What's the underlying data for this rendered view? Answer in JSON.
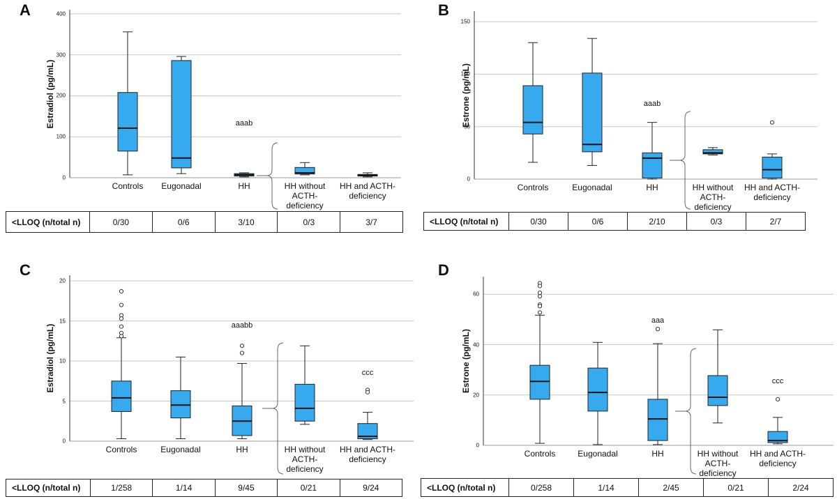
{
  "chart_data": [
    {
      "type": "box",
      "panel_label": "A",
      "y_label": "Estradiol (pg/mL)",
      "color": "#36a9ef",
      "grid": true,
      "ylim": [
        0,
        410
      ],
      "yticks": [
        0,
        100,
        200,
        300,
        400
      ],
      "categories": [
        "Controls",
        "Eugonadal",
        "HH",
        "HH without ACTH-deficiency",
        "HH and ACTH-deficiency"
      ],
      "boxes": [
        {
          "low": 7,
          "q1": 65,
          "median": 121,
          "q3": 208,
          "high": 356,
          "outliers": []
        },
        {
          "low": 10,
          "q1": 24,
          "median": 48,
          "q3": 286,
          "high": 296,
          "outliers": []
        },
        {
          "low": 2,
          "q1": 4,
          "median": 7,
          "q3": 10,
          "high": 12,
          "outliers": []
        },
        {
          "low": 7,
          "q1": 9,
          "median": 12,
          "q3": 25,
          "high": 37,
          "outliers": []
        },
        {
          "low": 2,
          "q1": 4,
          "median": 6,
          "q3": 8,
          "high": 12,
          "outliers": []
        }
      ],
      "annotations": [
        null,
        null,
        {
          "text": "aaab",
          "y": 133
        },
        null,
        null
      ],
      "table": {
        "header": "<LLOQ (n/total n)",
        "cells": [
          "0/30",
          "0/6",
          "3/10",
          "0/3",
          "3/7"
        ]
      }
    },
    {
      "type": "box",
      "panel_label": "B",
      "y_label": "Estrone (pg/mL)",
      "color": "#36a9ef",
      "grid": true,
      "ylim": [
        0,
        160
      ],
      "yticks": [
        0,
        50,
        100,
        150
      ],
      "categories": [
        "Controls",
        "Eugonadal",
        "HH",
        "HH without ACTH-deficiency",
        "HH and ACTH-deficiency"
      ],
      "boxes": [
        {
          "low": 16,
          "q1": 43,
          "median": 54,
          "q3": 89,
          "high": 130,
          "outliers": []
        },
        {
          "low": 13,
          "q1": 26,
          "median": 33,
          "q3": 101,
          "high": 134,
          "outliers": []
        },
        {
          "low": 0,
          "q1": 1,
          "median": 20,
          "q3": 25,
          "high": 54,
          "outliers": []
        },
        {
          "low": 23,
          "q1": 24,
          "median": 25,
          "q3": 28,
          "high": 30,
          "outliers": []
        },
        {
          "low": 0,
          "q1": 1,
          "median": 9,
          "q3": 21,
          "high": 24,
          "outliers": [
            54
          ]
        }
      ],
      "annotations": [
        null,
        null,
        {
          "text": "aaab",
          "y": 72
        },
        null,
        null
      ],
      "table": {
        "header": "<LLOQ (n/total n)",
        "cells": [
          "0/30",
          "0/6",
          "2/10",
          "0/3",
          "2/7"
        ]
      }
    },
    {
      "type": "box",
      "panel_label": "C",
      "y_label": "Estradiol (pg/mL)",
      "color": "#36a9ef",
      "grid": true,
      "ylim": [
        0,
        20.7
      ],
      "yticks": [
        0,
        5,
        10,
        15,
        20
      ],
      "categories": [
        "Controls",
        "Eugonadal",
        "HH",
        "HH without ACTH-deficiency",
        "HH and ACTH-deficiency"
      ],
      "boxes": [
        {
          "low": 0.3,
          "q1": 3.7,
          "median": 5.4,
          "q3": 7.5,
          "high": 12.9,
          "outliers": [
            18.7,
            17,
            15.7,
            15.3,
            14.3,
            13.5,
            13.1
          ]
        },
        {
          "low": 0.3,
          "q1": 2.9,
          "median": 4.5,
          "q3": 6.3,
          "high": 10.5,
          "outliers": []
        },
        {
          "low": 0.3,
          "q1": 0.7,
          "median": 2.5,
          "q3": 4.4,
          "high": 9.7,
          "outliers": [
            11.9,
            11
          ]
        },
        {
          "low": 2.1,
          "q1": 2.5,
          "median": 4.1,
          "q3": 7.1,
          "high": 11.9,
          "outliers": []
        },
        {
          "low": 0.2,
          "q1": 0.3,
          "median": 0.6,
          "q3": 2.2,
          "high": 3.6,
          "outliers": [
            6.4,
            6.1
          ]
        }
      ],
      "annotations": [
        null,
        null,
        {
          "text": "aaabb",
          "y": 14.4
        },
        null,
        {
          "text": "ccc",
          "y": 8.5
        }
      ],
      "table": {
        "header": "<LLOQ (n/total n)",
        "cells": [
          "1/258",
          "1/14",
          "9/45",
          "0/21",
          "9/24"
        ]
      }
    },
    {
      "type": "box",
      "panel_label": "D",
      "y_label": "Estrone (pg/mL)",
      "color": "#36a9ef",
      "grid": true,
      "ylim": [
        0,
        67
      ],
      "yticks": [
        0,
        20,
        40,
        60
      ],
      "categories": [
        "Controls",
        "Eugonadal",
        "HH",
        "HH without ACTH-deficiency",
        "HH and ACTH-deficiency"
      ],
      "boxes": [
        {
          "low": 0.8,
          "q1": 18.3,
          "median": 25.4,
          "q3": 31.8,
          "high": 51.7,
          "outliers": [
            64.4,
            63.3,
            60.6,
            59.2,
            55.9,
            55.3,
            52.8
          ]
        },
        {
          "low": 0.3,
          "q1": 13.6,
          "median": 21,
          "q3": 30.7,
          "high": 40.9,
          "outliers": []
        },
        {
          "low": 0.3,
          "q1": 1.9,
          "median": 10.5,
          "q3": 18.3,
          "high": 40.4,
          "outliers": [
            46.2
          ]
        },
        {
          "low": 8.9,
          "q1": 15.8,
          "median": 19.1,
          "q3": 27.7,
          "high": 45.9,
          "outliers": []
        },
        {
          "low": 0.6,
          "q1": 1.1,
          "median": 1.9,
          "q3": 5.5,
          "high": 11.1,
          "outliers": [
            18.3
          ]
        }
      ],
      "annotations": [
        null,
        null,
        {
          "text": "aaa",
          "y": 49.5
        },
        null,
        {
          "text": "ccc",
          "y": 25.4
        }
      ],
      "table": {
        "header": "<LLOQ (n/total n)",
        "cells": [
          "0/258",
          "1/14",
          "2/45",
          "0/21",
          "2/24"
        ]
      }
    }
  ]
}
